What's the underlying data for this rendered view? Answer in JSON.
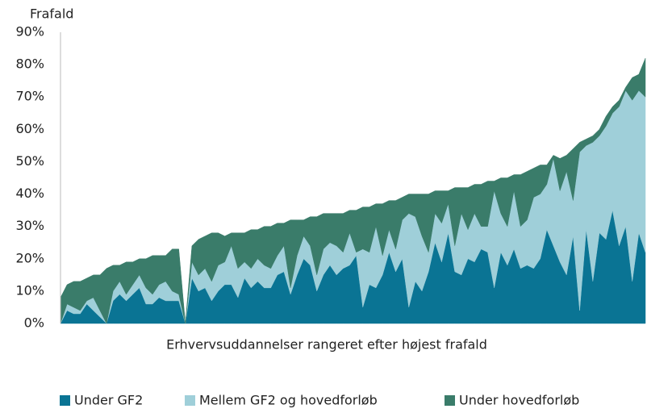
{
  "chart_data": {
    "type": "stacked_area",
    "y_axis_label": "Frafald",
    "x_axis_label": "Erhvervsuddannelser rangeret efter højest frafald",
    "categories": [
      null,
      null,
      null,
      null,
      null,
      null,
      null,
      null,
      null,
      null,
      null,
      null,
      null,
      null,
      null,
      null,
      null,
      null,
      null,
      null,
      null,
      null,
      null,
      null,
      null,
      null,
      null,
      null,
      null,
      null,
      null,
      null,
      null,
      null,
      null,
      null,
      null,
      null,
      null,
      null,
      null,
      null,
      null,
      null,
      null,
      null,
      null,
      null,
      null,
      null,
      null,
      null,
      null,
      null,
      null,
      null,
      null,
      null,
      null,
      null,
      null,
      null,
      null,
      null,
      null,
      null,
      null,
      null,
      null,
      null,
      null,
      null,
      null,
      null,
      null,
      null,
      null,
      null,
      null,
      null,
      null,
      null,
      null,
      null,
      null,
      null,
      null,
      null,
      null,
      null
    ],
    "series": [
      {
        "name": "Under GF2",
        "color": "#0a7494",
        "values": [
          0,
          4,
          3,
          3,
          6,
          4,
          2,
          0,
          7,
          9,
          7,
          9,
          11,
          6,
          6,
          8,
          7,
          7,
          7,
          0,
          14,
          10,
          11,
          7,
          10,
          12,
          12,
          8,
          14,
          11,
          13,
          11,
          11,
          15,
          16,
          9,
          15,
          20,
          18,
          10,
          15,
          18,
          15,
          17,
          18,
          21,
          5,
          12,
          11,
          15,
          22,
          16,
          20,
          5,
          13,
          10,
          16,
          25,
          19,
          28,
          16,
          15,
          20,
          19,
          23,
          22,
          11,
          22,
          18,
          23,
          17,
          18,
          17,
          20,
          29,
          24,
          19,
          15,
          27,
          4,
          29,
          13,
          28,
          26,
          35,
          24,
          30,
          13,
          28,
          22
        ]
      },
      {
        "name": "Mellem GF2 og hovedforløb",
        "color": "#9fcfd9",
        "values": [
          0,
          2,
          2,
          1,
          1,
          4,
          2,
          0,
          3,
          4,
          2,
          3,
          4,
          5,
          3,
          4,
          6,
          3,
          2,
          0,
          5,
          5,
          6,
          6,
          8,
          7,
          12,
          9,
          5,
          6,
          7,
          7,
          6,
          6,
          8,
          2,
          6,
          7,
          6,
          5,
          8,
          7,
          9,
          5,
          10,
          1,
          18,
          10,
          19,
          6,
          7,
          7,
          12,
          29,
          20,
          17,
          6,
          9,
          12,
          9,
          8,
          19,
          9,
          15,
          7,
          8,
          30,
          12,
          12,
          18,
          13,
          14,
          22,
          20,
          14,
          27,
          22,
          32,
          11,
          49,
          26,
          43,
          30,
          35,
          30,
          43,
          42,
          56,
          44,
          48
        ]
      },
      {
        "name": "Under hovedforløb",
        "color": "#3a7c6a",
        "values": [
          8,
          6,
          8,
          9,
          7,
          7,
          11,
          17,
          8,
          5,
          10,
          7,
          5,
          9,
          12,
          9,
          8,
          13,
          14,
          0,
          5,
          11,
          10,
          15,
          10,
          8,
          4,
          11,
          9,
          12,
          9,
          12,
          13,
          10,
          7,
          21,
          11,
          5,
          9,
          18,
          11,
          9,
          10,
          12,
          7,
          13,
          13,
          14,
          7,
          16,
          9,
          15,
          7,
          6,
          7,
          13,
          18,
          7,
          10,
          4,
          18,
          8,
          13,
          9,
          13,
          14,
          3,
          11,
          15,
          5,
          16,
          15,
          9,
          9,
          6,
          1,
          10,
          5,
          16,
          3,
          2,
          2,
          2,
          3,
          2,
          2,
          1,
          7,
          5,
          12
        ]
      }
    ],
    "ylim": [
      0,
      90
    ],
    "yticks": [
      {
        "value": 0,
        "label": "0%"
      },
      {
        "value": 10,
        "label": "10%"
      },
      {
        "value": 20,
        "label": "20%"
      },
      {
        "value": 30,
        "label": "30%"
      },
      {
        "value": 40,
        "label": "40%"
      },
      {
        "value": 50,
        "label": "50%"
      },
      {
        "value": 60,
        "label": "60%"
      },
      {
        "value": 70,
        "label": "70%"
      },
      {
        "value": 80,
        "label": "80%"
      },
      {
        "value": 90,
        "label": "90%"
      }
    ],
    "legend": "bottom"
  }
}
